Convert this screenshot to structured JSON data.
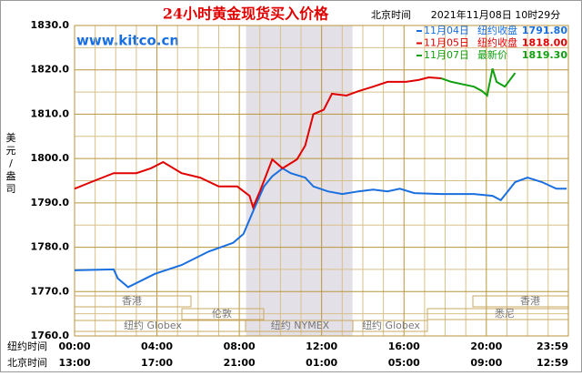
{
  "chart_data": {
    "type": "line",
    "title": "24小时黄金现货买入价格",
    "clock_label": "北京时间",
    "timestamp": "2021年11月08日 10时29分",
    "watermark": "www.kitco.cn",
    "y_label": "美元/盎司",
    "x_row_labels": [
      "纽约时间",
      "北京时间"
    ],
    "xlim": [
      0,
      23.983
    ],
    "ylim": [
      1760,
      1830
    ],
    "yticks": [
      {
        "value": 1760,
        "label": "1760.0"
      },
      {
        "value": 1770,
        "label": "1770.0"
      },
      {
        "value": 1780,
        "label": "1780.0"
      },
      {
        "value": 1790,
        "label": "1790.0"
      },
      {
        "value": 1800,
        "label": "1800.0"
      },
      {
        "value": 1810,
        "label": "1810.0"
      },
      {
        "value": 1820,
        "label": "1820.0"
      },
      {
        "value": 1830,
        "label": "1830.0"
      }
    ],
    "xticks": [
      {
        "value": 0,
        "label": "00:00"
      },
      {
        "value": 4,
        "label": "04:00"
      },
      {
        "value": 8,
        "label": "08:00"
      },
      {
        "value": 12,
        "label": "12:00"
      },
      {
        "value": 16,
        "label": "16:00"
      },
      {
        "value": 20,
        "label": "20:00"
      },
      {
        "value": 23.983,
        "label": "23:59"
      }
    ],
    "x2ticks": [
      {
        "value": 0,
        "label": "13:00"
      },
      {
        "value": 4,
        "label": "17:00"
      },
      {
        "value": 8,
        "label": "21:00"
      },
      {
        "value": 12,
        "label": "01:00"
      },
      {
        "value": 16,
        "label": "05:00"
      },
      {
        "value": 20,
        "label": "09:00"
      },
      {
        "value": 23.983,
        "label": "12:59"
      }
    ],
    "xgrid": [
      1,
      2,
      3,
      5,
      6,
      7,
      9,
      10,
      11,
      13,
      14,
      15,
      17,
      18,
      19,
      21,
      22,
      23
    ],
    "ygrid": [
      1765,
      1775,
      1785,
      1795,
      1805,
      1815,
      1825
    ],
    "grid": true,
    "shaded_range": [
      8.33,
      13.5
    ],
    "markets": [
      "香港",
      "伦敦",
      "纽约 Globex",
      "纽约 NYMEX",
      "纽约 Globex",
      "香港",
      "悉尼"
    ],
    "series": [
      {
        "name": "11月04日",
        "label": "纽约收盘",
        "last_label": "1791.80",
        "color": "#1a6fe0",
        "x": [
          0,
          1.9,
          2.1,
          2.6,
          3.9,
          5.2,
          6.5,
          7.7,
          8.2,
          8.8,
          9.2,
          9.6,
          10.1,
          10.5,
          11.2,
          11.6,
          12.3,
          13,
          13.8,
          14.5,
          15.2,
          15.8,
          16.5,
          17.8,
          19.4,
          20.3,
          20.7,
          21.4,
          22,
          22.7,
          23.4,
          23.9
        ],
        "values": [
          1774.8,
          1775,
          1773,
          1771,
          1774,
          1776,
          1779,
          1781,
          1783,
          1789.5,
          1793.7,
          1796,
          1797.8,
          1796.7,
          1795.7,
          1793.7,
          1792.6,
          1792,
          1792.6,
          1793,
          1792.6,
          1793.2,
          1792.2,
          1792,
          1792,
          1791.6,
          1790.6,
          1794.7,
          1795.7,
          1794.7,
          1793.2,
          1793.2
        ]
      },
      {
        "name": "11月05日",
        "label": "纽约收盘",
        "last_label": "1818.00",
        "color": "#e00000",
        "x": [
          0,
          0.8,
          1.9,
          3,
          3.7,
          4.3,
          5.2,
          6.1,
          7,
          7.9,
          8.5,
          8.67,
          9,
          9.6,
          10.1,
          10.8,
          11.2,
          11.6,
          12.1,
          12.5,
          13.2,
          13.8,
          14.5,
          15.2,
          16.1,
          16.7,
          17.2,
          17.8
        ],
        "values": [
          1793.2,
          1794.7,
          1796.7,
          1796.7,
          1797.8,
          1799.2,
          1796.7,
          1795.7,
          1793.7,
          1793.7,
          1791.6,
          1789,
          1792.6,
          1799.8,
          1797.8,
          1799.8,
          1802.9,
          1810,
          1811,
          1814.6,
          1814.2,
          1815.2,
          1816.2,
          1817.3,
          1817.3,
          1817.7,
          1818.3,
          1818.1
        ]
      },
      {
        "name": "11月07日",
        "label": "最新价",
        "last_label": "1819.30",
        "color": "#10a010",
        "x": [
          17.8,
          18.3,
          18.9,
          19.4,
          19.8,
          20.04,
          20.3,
          20.5,
          20.9,
          21.4
        ],
        "values": [
          1818.1,
          1817.3,
          1816.7,
          1816.2,
          1815.2,
          1814.2,
          1820.3,
          1817.3,
          1816.2,
          1819.3
        ]
      }
    ]
  }
}
